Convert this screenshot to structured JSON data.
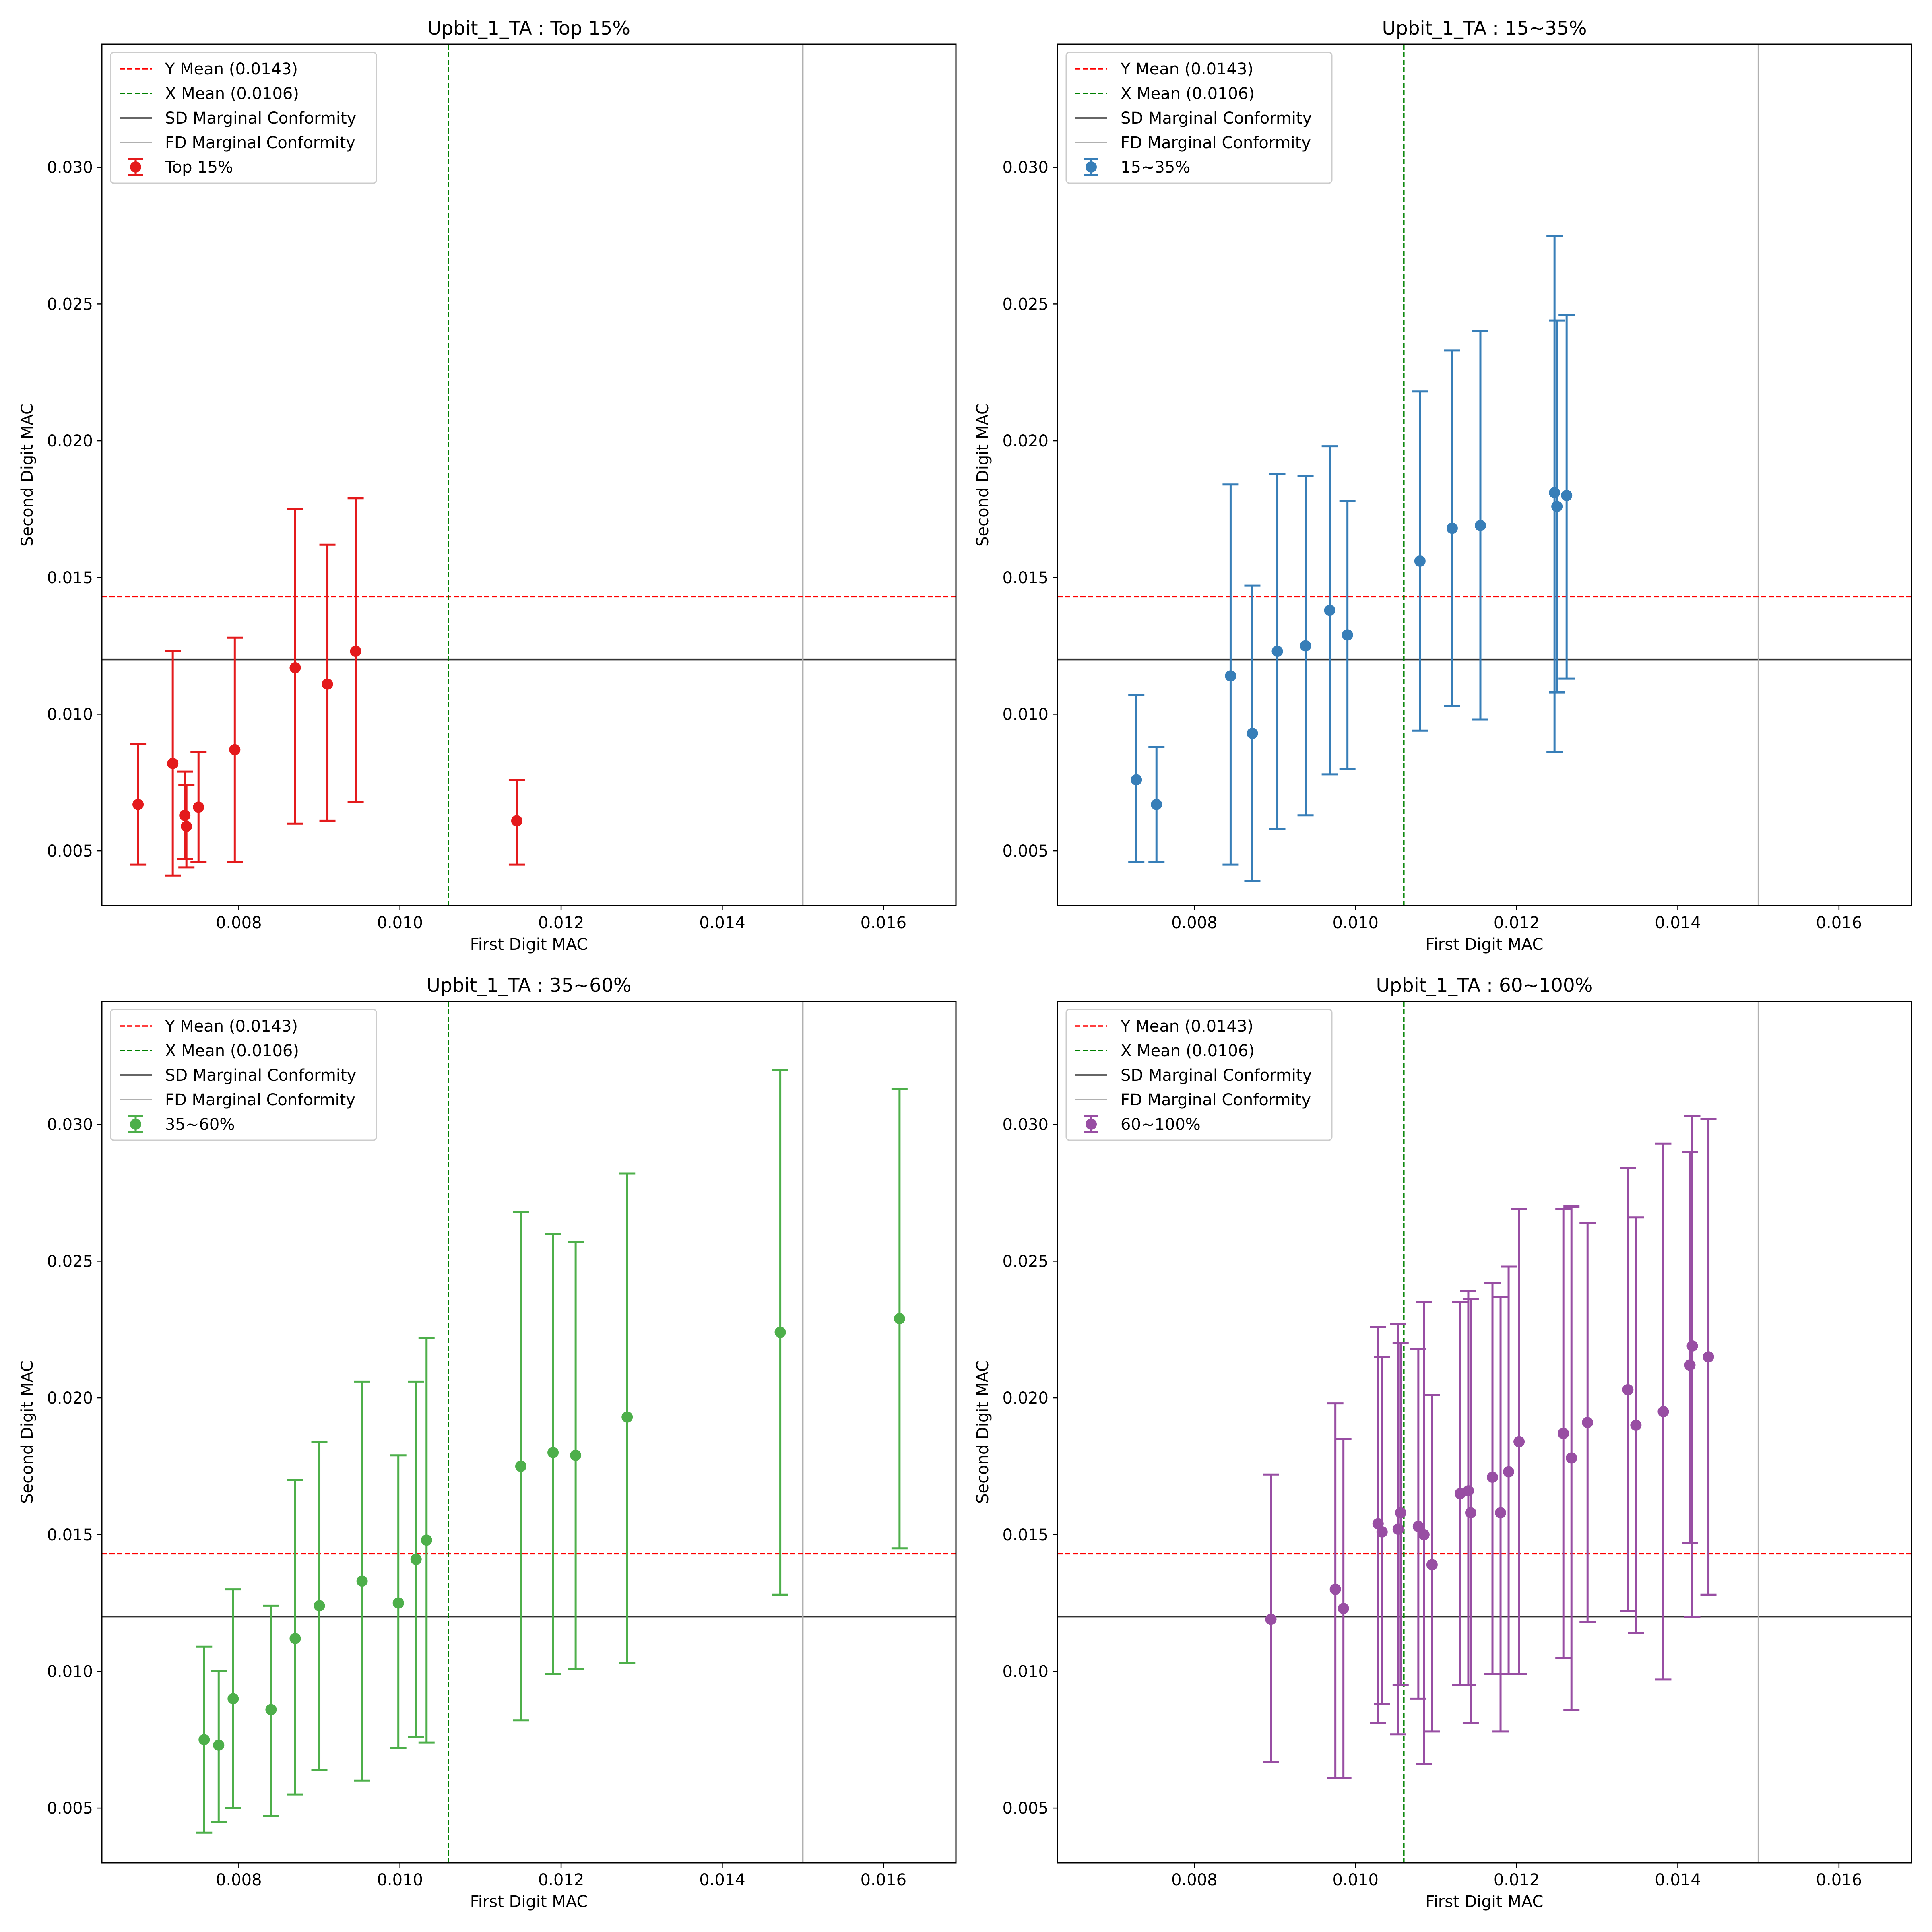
{
  "figure": {
    "y_mean_line": 0.0143,
    "x_mean_line": 0.0106,
    "sd_conformity_line": 0.012,
    "fd_conformity_line": 0.015,
    "legend_labels": {
      "y_mean": "Y Mean (0.0143)",
      "x_mean": "X Mean (0.0106)",
      "sd": "SD Marginal Conformity",
      "fd": "FD Marginal Conformity"
    },
    "colors": {
      "y_mean": "#ff0000",
      "x_mean": "#008000",
      "sd": "#333333",
      "fd": "#b0b0b0"
    }
  },
  "chart_data": [
    {
      "type": "scatter",
      "title": "Upbit_1_TA : Top 15%",
      "xlabel": "First Digit MAC",
      "ylabel": "Second Digit MAC",
      "xlim": [
        0.0063,
        0.0169
      ],
      "ylim": [
        0.003,
        0.0345
      ],
      "xticks": [
        "0.008",
        "0.010",
        "0.012",
        "0.014",
        "0.016"
      ],
      "yticks": [
        "0.005",
        "0.010",
        "0.015",
        "0.020",
        "0.025",
        "0.030"
      ],
      "legend_position": "upper left",
      "grid": false,
      "series": [
        {
          "name": "Top 15%",
          "color": "#e41a1c",
          "points": [
            {
              "x": 0.00675,
              "y": 0.0067,
              "ylow": 0.0045,
              "yhigh": 0.0089
            },
            {
              "x": 0.00718,
              "y": 0.0082,
              "ylow": 0.0041,
              "yhigh": 0.0123
            },
            {
              "x": 0.00733,
              "y": 0.0063,
              "ylow": 0.0047,
              "yhigh": 0.0079
            },
            {
              "x": 0.00735,
              "y": 0.0059,
              "ylow": 0.0044,
              "yhigh": 0.0074
            },
            {
              "x": 0.0075,
              "y": 0.0066,
              "ylow": 0.0046,
              "yhigh": 0.0086
            },
            {
              "x": 0.00795,
              "y": 0.0087,
              "ylow": 0.0046,
              "yhigh": 0.0128
            },
            {
              "x": 0.0087,
              "y": 0.0117,
              "ylow": 0.006,
              "yhigh": 0.0175
            },
            {
              "x": 0.0091,
              "y": 0.0111,
              "ylow": 0.0061,
              "yhigh": 0.0162
            },
            {
              "x": 0.00945,
              "y": 0.0123,
              "ylow": 0.0068,
              "yhigh": 0.0179
            },
            {
              "x": 0.01145,
              "y": 0.0061,
              "ylow": 0.0045,
              "yhigh": 0.0076
            }
          ]
        }
      ]
    },
    {
      "type": "scatter",
      "title": "Upbit_1_TA : 15~35%",
      "xlabel": "First Digit MAC",
      "ylabel": "Second Digit MAC",
      "xlim": [
        0.0063,
        0.0169
      ],
      "ylim": [
        0.003,
        0.0345
      ],
      "xticks": [
        "0.008",
        "0.010",
        "0.012",
        "0.014",
        "0.016"
      ],
      "yticks": [
        "0.005",
        "0.010",
        "0.015",
        "0.020",
        "0.025",
        "0.030"
      ],
      "legend_position": "upper left",
      "grid": false,
      "series": [
        {
          "name": "15~35%",
          "color": "#377eb8",
          "points": [
            {
              "x": 0.00728,
              "y": 0.0076,
              "ylow": 0.0046,
              "yhigh": 0.0107
            },
            {
              "x": 0.00753,
              "y": 0.0067,
              "ylow": 0.0046,
              "yhigh": 0.0088
            },
            {
              "x": 0.00845,
              "y": 0.0114,
              "ylow": 0.0045,
              "yhigh": 0.0184
            },
            {
              "x": 0.00872,
              "y": 0.0093,
              "ylow": 0.0039,
              "yhigh": 0.0147
            },
            {
              "x": 0.00903,
              "y": 0.0123,
              "ylow": 0.0058,
              "yhigh": 0.0188
            },
            {
              "x": 0.00938,
              "y": 0.0125,
              "ylow": 0.0063,
              "yhigh": 0.0187
            },
            {
              "x": 0.00968,
              "y": 0.0138,
              "ylow": 0.0078,
              "yhigh": 0.0198
            },
            {
              "x": 0.0099,
              "y": 0.0129,
              "ylow": 0.008,
              "yhigh": 0.0178
            },
            {
              "x": 0.0108,
              "y": 0.0156,
              "ylow": 0.0094,
              "yhigh": 0.0218
            },
            {
              "x": 0.0112,
              "y": 0.0168,
              "ylow": 0.0103,
              "yhigh": 0.0233
            },
            {
              "x": 0.01155,
              "y": 0.0169,
              "ylow": 0.0098,
              "yhigh": 0.024
            },
            {
              "x": 0.01247,
              "y": 0.0181,
              "ylow": 0.0086,
              "yhigh": 0.0275
            },
            {
              "x": 0.0125,
              "y": 0.0176,
              "ylow": 0.0108,
              "yhigh": 0.0244
            },
            {
              "x": 0.01262,
              "y": 0.018,
              "ylow": 0.0113,
              "yhigh": 0.0246
            }
          ]
        }
      ]
    },
    {
      "type": "scatter",
      "title": "Upbit_1_TA : 35~60%",
      "xlabel": "First Digit MAC",
      "ylabel": "Second Digit MAC",
      "xlim": [
        0.0063,
        0.0169
      ],
      "ylim": [
        0.003,
        0.0345
      ],
      "xticks": [
        "0.008",
        "0.010",
        "0.012",
        "0.014",
        "0.016"
      ],
      "yticks": [
        "0.005",
        "0.010",
        "0.015",
        "0.020",
        "0.025",
        "0.030"
      ],
      "legend_position": "upper left",
      "grid": false,
      "series": [
        {
          "name": "35~60%",
          "color": "#4daf4a",
          "points": [
            {
              "x": 0.00757,
              "y": 0.0075,
              "ylow": 0.0041,
              "yhigh": 0.0109
            },
            {
              "x": 0.00775,
              "y": 0.0073,
              "ylow": 0.0045,
              "yhigh": 0.01
            },
            {
              "x": 0.00793,
              "y": 0.009,
              "ylow": 0.005,
              "yhigh": 0.013
            },
            {
              "x": 0.0084,
              "y": 0.0086,
              "ylow": 0.0047,
              "yhigh": 0.0124
            },
            {
              "x": 0.0087,
              "y": 0.0112,
              "ylow": 0.0055,
              "yhigh": 0.017
            },
            {
              "x": 0.009,
              "y": 0.0124,
              "ylow": 0.0064,
              "yhigh": 0.0184
            },
            {
              "x": 0.00953,
              "y": 0.0133,
              "ylow": 0.006,
              "yhigh": 0.0206
            },
            {
              "x": 0.00998,
              "y": 0.0125,
              "ylow": 0.0072,
              "yhigh": 0.0179
            },
            {
              "x": 0.0102,
              "y": 0.0141,
              "ylow": 0.0076,
              "yhigh": 0.0206
            },
            {
              "x": 0.01033,
              "y": 0.0148,
              "ylow": 0.0074,
              "yhigh": 0.0222
            },
            {
              "x": 0.0115,
              "y": 0.0175,
              "ylow": 0.0082,
              "yhigh": 0.0268
            },
            {
              "x": 0.0119,
              "y": 0.018,
              "ylow": 0.0099,
              "yhigh": 0.026
            },
            {
              "x": 0.01218,
              "y": 0.0179,
              "ylow": 0.0101,
              "yhigh": 0.0257
            },
            {
              "x": 0.01282,
              "y": 0.0193,
              "ylow": 0.0103,
              "yhigh": 0.0282
            },
            {
              "x": 0.01472,
              "y": 0.0224,
              "ylow": 0.0128,
              "yhigh": 0.032
            },
            {
              "x": 0.0162,
              "y": 0.0229,
              "ylow": 0.0145,
              "yhigh": 0.0313
            }
          ]
        }
      ]
    },
    {
      "type": "scatter",
      "title": "Upbit_1_TA : 60~100%",
      "xlabel": "First Digit MAC",
      "ylabel": "Second Digit MAC",
      "xlim": [
        0.0063,
        0.0169
      ],
      "ylim": [
        0.003,
        0.0345
      ],
      "xticks": [
        "0.008",
        "0.010",
        "0.012",
        "0.014",
        "0.016"
      ],
      "yticks": [
        "0.005",
        "0.010",
        "0.015",
        "0.020",
        "0.025",
        "0.030"
      ],
      "legend_position": "upper left",
      "grid": false,
      "series": [
        {
          "name": "60~100%",
          "color": "#984ea3",
          "points": [
            {
              "x": 0.00895,
              "y": 0.0119,
              "ylow": 0.0067,
              "yhigh": 0.0172
            },
            {
              "x": 0.00975,
              "y": 0.013,
              "ylow": 0.0061,
              "yhigh": 0.0198
            },
            {
              "x": 0.00985,
              "y": 0.0123,
              "ylow": 0.0061,
              "yhigh": 0.0185
            },
            {
              "x": 0.01028,
              "y": 0.0154,
              "ylow": 0.0081,
              "yhigh": 0.0226
            },
            {
              "x": 0.01033,
              "y": 0.0151,
              "ylow": 0.0088,
              "yhigh": 0.0215
            },
            {
              "x": 0.01053,
              "y": 0.0152,
              "ylow": 0.0077,
              "yhigh": 0.0227
            },
            {
              "x": 0.01056,
              "y": 0.0158,
              "ylow": 0.0095,
              "yhigh": 0.022
            },
            {
              "x": 0.01078,
              "y": 0.0153,
              "ylow": 0.009,
              "yhigh": 0.0218
            },
            {
              "x": 0.01085,
              "y": 0.015,
              "ylow": 0.0066,
              "yhigh": 0.0235
            },
            {
              "x": 0.01095,
              "y": 0.0139,
              "ylow": 0.0078,
              "yhigh": 0.0201
            },
            {
              "x": 0.0113,
              "y": 0.0165,
              "ylow": 0.0095,
              "yhigh": 0.0235
            },
            {
              "x": 0.0114,
              "y": 0.0166,
              "ylow": 0.0095,
              "yhigh": 0.0239
            },
            {
              "x": 0.01143,
              "y": 0.0158,
              "ylow": 0.0081,
              "yhigh": 0.0236
            },
            {
              "x": 0.0117,
              "y": 0.0171,
              "ylow": 0.0099,
              "yhigh": 0.0242
            },
            {
              "x": 0.0118,
              "y": 0.0158,
              "ylow": 0.0078,
              "yhigh": 0.0237
            },
            {
              "x": 0.0119,
              "y": 0.0173,
              "ylow": 0.0099,
              "yhigh": 0.0248
            },
            {
              "x": 0.01203,
              "y": 0.0184,
              "ylow": 0.0099,
              "yhigh": 0.0269
            },
            {
              "x": 0.01258,
              "y": 0.0187,
              "ylow": 0.0105,
              "yhigh": 0.0269
            },
            {
              "x": 0.01268,
              "y": 0.0178,
              "ylow": 0.0086,
              "yhigh": 0.027
            },
            {
              "x": 0.01288,
              "y": 0.0191,
              "ylow": 0.0118,
              "yhigh": 0.0264
            },
            {
              "x": 0.01338,
              "y": 0.0203,
              "ylow": 0.0122,
              "yhigh": 0.0284
            },
            {
              "x": 0.01348,
              "y": 0.019,
              "ylow": 0.0114,
              "yhigh": 0.0266
            },
            {
              "x": 0.01382,
              "y": 0.0195,
              "ylow": 0.0097,
              "yhigh": 0.0293
            },
            {
              "x": 0.01415,
              "y": 0.0212,
              "ylow": 0.0147,
              "yhigh": 0.029
            },
            {
              "x": 0.01418,
              "y": 0.0219,
              "ylow": 0.012,
              "yhigh": 0.0303
            },
            {
              "x": 0.01438,
              "y": 0.0215,
              "ylow": 0.0128,
              "yhigh": 0.0302
            }
          ]
        }
      ]
    }
  ]
}
